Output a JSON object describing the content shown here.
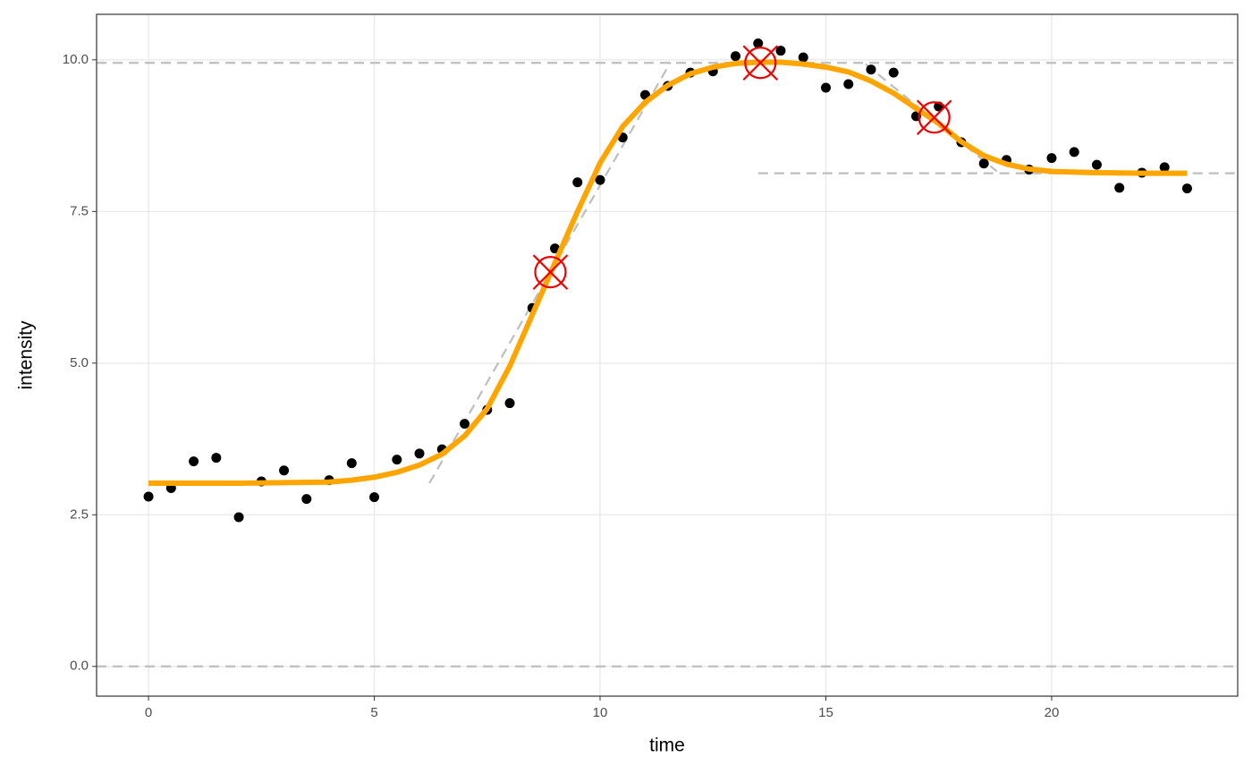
{
  "chart_data": {
    "type": "scatter",
    "x_label": "time",
    "y_label": "intensity",
    "xlim": [
      -1.15,
      24.12
    ],
    "ylim": [
      -0.49,
      10.75
    ],
    "xticks": [
      0,
      5,
      10,
      15,
      20
    ],
    "yticks": [
      {
        "value": 0,
        "label": "0.0"
      },
      2.5,
      {
        "value": 5,
        "label": "5.0"
      },
      7.5,
      {
        "value": 10,
        "label": "10.0"
      }
    ],
    "grid": true,
    "series": [
      {
        "type": "scatter",
        "color": "#000000",
        "x": [
          0,
          0.5,
          1,
          1.5,
          2,
          2.5,
          3,
          3.5,
          4,
          4.5,
          5,
          5.5,
          6,
          6.5,
          7,
          7.5,
          8,
          8.5,
          9,
          9.5,
          10,
          10.5,
          11,
          11.5,
          12,
          12.5,
          13,
          13.5,
          14,
          14.5,
          15,
          15.5,
          16,
          16.5,
          17,
          17.5,
          18,
          18.5,
          19,
          19.5,
          20,
          20.5,
          21,
          21.5,
          22,
          22.5,
          23
        ],
        "values": [
          2.8,
          2.94,
          3.38,
          3.44,
          2.46,
          3.05,
          3.23,
          2.76,
          3.07,
          3.35,
          2.79,
          3.41,
          3.51,
          3.58,
          4.0,
          4.23,
          4.34,
          5.91,
          6.89,
          7.98,
          8.02,
          8.72,
          9.42,
          9.57,
          9.79,
          9.81,
          10.06,
          10.27,
          10.15,
          10.04,
          9.54,
          9.6,
          9.84,
          9.79,
          9.07,
          9.23,
          8.64,
          8.29,
          8.35,
          8.19,
          8.38,
          8.48,
          8.27,
          7.89,
          8.14,
          8.23,
          7.88
        ]
      },
      {
        "type": "line",
        "color": "#ffa500",
        "x": [
          0,
          1,
          2,
          3,
          4,
          4.5,
          5,
          5.5,
          6,
          6.5,
          7,
          7.5,
          8,
          8.5,
          9,
          9.5,
          10,
          10.5,
          11,
          11.5,
          12,
          12.5,
          13,
          13.5,
          14,
          14.5,
          15,
          15.5,
          16,
          16.5,
          17,
          17.5,
          18,
          18.5,
          19,
          19.5,
          20,
          21,
          22,
          23
        ],
        "values": [
          3.02,
          3.02,
          3.02,
          3.03,
          3.04,
          3.07,
          3.12,
          3.2,
          3.32,
          3.5,
          3.8,
          4.25,
          4.95,
          5.8,
          6.65,
          7.5,
          8.3,
          8.9,
          9.3,
          9.58,
          9.77,
          9.88,
          9.94,
          9.96,
          9.96,
          9.93,
          9.88,
          9.8,
          9.65,
          9.45,
          9.2,
          8.95,
          8.65,
          8.42,
          8.28,
          8.2,
          8.16,
          8.14,
          8.13,
          8.13
        ]
      }
    ],
    "reference_color": "#bebebe",
    "hlines": [
      0,
      9.95
    ],
    "segments": [
      {
        "x": [
          13.5,
          24.12
        ],
        "y": [
          8.13,
          8.13
        ]
      },
      {
        "x": [
          6.22,
          11.56
        ],
        "y": [
          3.02,
          9.96
        ]
      },
      {
        "x": [
          15.88,
          18.79
        ],
        "y": [
          9.93,
          8.16
        ]
      }
    ],
    "markers": {
      "color": "#ee0000",
      "x": [
        8.9,
        13.55,
        17.4
      ],
      "y": [
        6.5,
        9.95,
        9.05
      ]
    }
  }
}
